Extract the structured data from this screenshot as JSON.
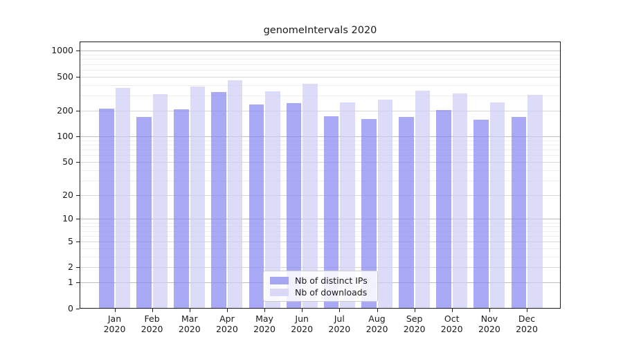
{
  "title": "genomeIntervals 2020",
  "chart_data": {
    "type": "bar",
    "title": "genomeIntervals 2020",
    "categories": [
      "Jan 2020",
      "Feb 2020",
      "Mar 2020",
      "Apr 2020",
      "May 2020",
      "Jun 2020",
      "Jul 2020",
      "Aug 2020",
      "Sep 2020",
      "Oct 2020",
      "Nov 2020",
      "Dec 2020"
    ],
    "series": [
      {
        "name": "Nb of distinct IPs",
        "color": "#a5a5f0",
        "values": [
          212,
          170,
          208,
          330,
          236,
          245,
          172,
          161,
          168,
          202,
          157,
          170
        ]
      },
      {
        "name": "Nb of downloads",
        "color": "#d9d9f7",
        "values": [
          371,
          315,
          385,
          454,
          336,
          414,
          252,
          268,
          346,
          321,
          252,
          308
        ]
      }
    ],
    "yscale": "symlog",
    "yticks": [
      0,
      1,
      2,
      5,
      10,
      20,
      50,
      100,
      200,
      500,
      1000
    ],
    "yminor_ticks": [
      3,
      4,
      6,
      7,
      8,
      9,
      30,
      40,
      60,
      70,
      80,
      90,
      300,
      400,
      600,
      700,
      800,
      900
    ],
    "ylim": [
      0,
      1280
    ],
    "xlabel": "",
    "ylabel": "",
    "grid": true,
    "legend_position": "lower center"
  },
  "legend": {
    "items": [
      {
        "label": "Nb of distinct IPs",
        "swatch_color": "#a5a5f0"
      },
      {
        "label": "Nb of downloads",
        "swatch_color": "#d9d9f7"
      }
    ]
  },
  "colors": {
    "bar_distinct_ips_fill": "rgba(132,132,241,0.7)",
    "bar_downloads_fill": "rgba(205,205,245,0.7)",
    "grid_power10": "#bdbdbd",
    "grid_major": "#d7d7d7",
    "grid_minor": "#ededed",
    "axis": "#1a1a1a",
    "text": "#1a1a1a",
    "legend_border": "#cbcbcb"
  }
}
